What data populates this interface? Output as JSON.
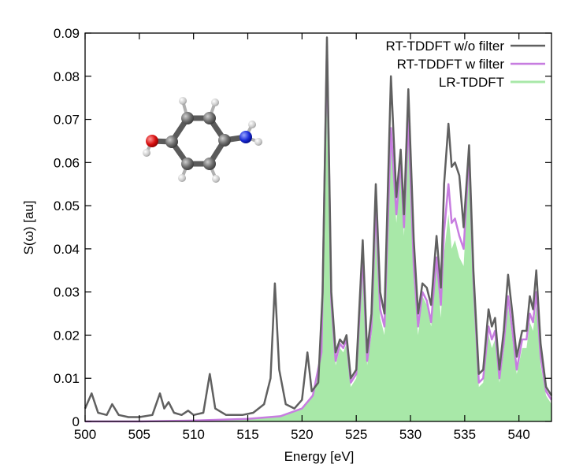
{
  "chart_data": {
    "type": "line",
    "title": "",
    "xlabel": "Energy [eV]",
    "ylabel": "S(ω) [au]",
    "xlim": [
      500,
      543
    ],
    "ylim": [
      0,
      0.09
    ],
    "xticks": [
      500,
      505,
      510,
      515,
      520,
      525,
      530,
      535,
      540
    ],
    "xtick_labels": [
      "500",
      "505",
      "510",
      "515",
      "520",
      "525",
      "530",
      "535",
      "540"
    ],
    "yticks": [
      0,
      0.01,
      0.02,
      0.03,
      0.04,
      0.05,
      0.06,
      0.07,
      0.08,
      0.09
    ],
    "ytick_labels": [
      "0",
      "0.01",
      "0.02",
      "0.03",
      "0.04",
      "0.05",
      "0.06",
      "0.07",
      "0.08",
      "0.09"
    ],
    "grid": false,
    "legend_position": "top-right",
    "inset": "molecule-image",
    "series": [
      {
        "name": "RT-TDDFT w/o filter",
        "color": "#606060",
        "style": "line",
        "points": [
          [
            500,
            0.003
          ],
          [
            500.6,
            0.0065
          ],
          [
            501.2,
            0.002
          ],
          [
            502,
            0.0015
          ],
          [
            502.5,
            0.004
          ],
          [
            503.1,
            0.0015
          ],
          [
            504,
            0.001
          ],
          [
            505,
            0.001
          ],
          [
            506.2,
            0.0015
          ],
          [
            506.9,
            0.0065
          ],
          [
            507.3,
            0.003
          ],
          [
            507.7,
            0.0045
          ],
          [
            508.2,
            0.002
          ],
          [
            508.9,
            0.0015
          ],
          [
            509.5,
            0.0025
          ],
          [
            510,
            0.0015
          ],
          [
            510.9,
            0.002
          ],
          [
            511.5,
            0.011
          ],
          [
            512,
            0.003
          ],
          [
            513,
            0.0015
          ],
          [
            514.5,
            0.0015
          ],
          [
            515.5,
            0.002
          ],
          [
            516.5,
            0.004
          ],
          [
            517.1,
            0.01
          ],
          [
            517.5,
            0.032
          ],
          [
            517.9,
            0.012
          ],
          [
            518.5,
            0.004
          ],
          [
            519.3,
            0.003
          ],
          [
            520,
            0.005
          ],
          [
            520.5,
            0.016
          ],
          [
            520.9,
            0.007
          ],
          [
            521.5,
            0.009
          ],
          [
            521.9,
            0.03
          ],
          [
            522.3,
            0.089
          ],
          [
            522.7,
            0.03
          ],
          [
            523.1,
            0.016
          ],
          [
            523.5,
            0.019
          ],
          [
            523.8,
            0.018
          ],
          [
            524.1,
            0.02
          ],
          [
            524.5,
            0.01
          ],
          [
            525,
            0.012
          ],
          [
            525.6,
            0.042
          ],
          [
            526,
            0.016
          ],
          [
            526.4,
            0.025
          ],
          [
            526.8,
            0.055
          ],
          [
            527.2,
            0.03
          ],
          [
            527.6,
            0.025
          ],
          [
            528.2,
            0.08
          ],
          [
            528.7,
            0.052
          ],
          [
            529.1,
            0.063
          ],
          [
            529.4,
            0.048
          ],
          [
            529.8,
            0.077
          ],
          [
            530.3,
            0.042
          ],
          [
            530.7,
            0.025
          ],
          [
            531.1,
            0.032
          ],
          [
            531.5,
            0.031
          ],
          [
            531.9,
            0.027
          ],
          [
            532.4,
            0.043
          ],
          [
            532.8,
            0.031
          ],
          [
            533.1,
            0.055
          ],
          [
            533.5,
            0.069
          ],
          [
            533.8,
            0.059
          ],
          [
            534.1,
            0.06
          ],
          [
            534.5,
            0.057
          ],
          [
            534.9,
            0.045
          ],
          [
            535.4,
            0.064
          ],
          [
            535.8,
            0.035
          ],
          [
            536.3,
            0.011
          ],
          [
            536.7,
            0.012
          ],
          [
            537.2,
            0.026
          ],
          [
            537.5,
            0.022
          ],
          [
            537.8,
            0.024
          ],
          [
            538.2,
            0.012
          ],
          [
            538.6,
            0.021
          ],
          [
            539,
            0.034
          ],
          [
            539.4,
            0.025
          ],
          [
            539.8,
            0.015
          ],
          [
            540.3,
            0.021
          ],
          [
            540.7,
            0.021
          ],
          [
            541,
            0.029
          ],
          [
            541.3,
            0.026
          ],
          [
            541.6,
            0.035
          ],
          [
            542,
            0.018
          ],
          [
            542.5,
            0.008
          ],
          [
            543,
            0.006
          ]
        ]
      },
      {
        "name": "RT-TDDFT w filter",
        "color": "#c77de0",
        "style": "line",
        "points": [
          [
            500,
            0
          ],
          [
            505,
            0
          ],
          [
            510,
            0.0002
          ],
          [
            515,
            0.0006
          ],
          [
            518,
            0.0012
          ],
          [
            520,
            0.003
          ],
          [
            521,
            0.006
          ],
          [
            521.8,
            0.016
          ],
          [
            522.3,
            0.087
          ],
          [
            522.7,
            0.028
          ],
          [
            523.1,
            0.014
          ],
          [
            523.5,
            0.018
          ],
          [
            523.8,
            0.017
          ],
          [
            524.1,
            0.019
          ],
          [
            524.5,
            0.009
          ],
          [
            525,
            0.011
          ],
          [
            525.6,
            0.038
          ],
          [
            526,
            0.014
          ],
          [
            526.4,
            0.022
          ],
          [
            526.8,
            0.05
          ],
          [
            527.2,
            0.026
          ],
          [
            527.6,
            0.022
          ],
          [
            528.2,
            0.068
          ],
          [
            528.7,
            0.048
          ],
          [
            529.1,
            0.06
          ],
          [
            529.4,
            0.045
          ],
          [
            529.8,
            0.07
          ],
          [
            530.3,
            0.036
          ],
          [
            530.7,
            0.022
          ],
          [
            531.1,
            0.03
          ],
          [
            531.5,
            0.028
          ],
          [
            531.9,
            0.023
          ],
          [
            532.4,
            0.038
          ],
          [
            532.8,
            0.027
          ],
          [
            533.1,
            0.044
          ],
          [
            533.5,
            0.055
          ],
          [
            533.8,
            0.046
          ],
          [
            534.1,
            0.047
          ],
          [
            534.5,
            0.043
          ],
          [
            534.9,
            0.04
          ],
          [
            535.4,
            0.062
          ],
          [
            535.8,
            0.033
          ],
          [
            536.3,
            0.009
          ],
          [
            536.7,
            0.01
          ],
          [
            537.2,
            0.022
          ],
          [
            537.5,
            0.019
          ],
          [
            537.8,
            0.021
          ],
          [
            538.2,
            0.01
          ],
          [
            538.6,
            0.018
          ],
          [
            539,
            0.029
          ],
          [
            539.4,
            0.021
          ],
          [
            539.8,
            0.012
          ],
          [
            540.3,
            0.019
          ],
          [
            540.7,
            0.019
          ],
          [
            541,
            0.025
          ],
          [
            541.3,
            0.023
          ],
          [
            541.6,
            0.03
          ],
          [
            542,
            0.015
          ],
          [
            542.5,
            0.007
          ],
          [
            543,
            0.005
          ]
        ]
      },
      {
        "name": "LR-TDDFT",
        "color": "#a8e8a8",
        "style": "area",
        "points": [
          [
            500,
            0
          ],
          [
            505,
            0
          ],
          [
            510,
            0.0002
          ],
          [
            515,
            0.0005
          ],
          [
            518,
            0.0012
          ],
          [
            520,
            0.003
          ],
          [
            521,
            0.006
          ],
          [
            521.8,
            0.016
          ],
          [
            522.3,
            0.086
          ],
          [
            522.7,
            0.027
          ],
          [
            523.1,
            0.013
          ],
          [
            523.5,
            0.017
          ],
          [
            523.8,
            0.016
          ],
          [
            524.1,
            0.018
          ],
          [
            524.5,
            0.008
          ],
          [
            525,
            0.01
          ],
          [
            525.6,
            0.037
          ],
          [
            526,
            0.013
          ],
          [
            526.4,
            0.02
          ],
          [
            526.8,
            0.048
          ],
          [
            527.2,
            0.024
          ],
          [
            527.6,
            0.02
          ],
          [
            528.2,
            0.065
          ],
          [
            528.7,
            0.046
          ],
          [
            529.1,
            0.059
          ],
          [
            529.4,
            0.043
          ],
          [
            529.8,
            0.066
          ],
          [
            530.3,
            0.033
          ],
          [
            530.7,
            0.02
          ],
          [
            531.1,
            0.029
          ],
          [
            531.5,
            0.027
          ],
          [
            531.9,
            0.022
          ],
          [
            532.4,
            0.037
          ],
          [
            532.8,
            0.024
          ],
          [
            533.1,
            0.039
          ],
          [
            533.5,
            0.048
          ],
          [
            533.8,
            0.04
          ],
          [
            534.1,
            0.042
          ],
          [
            534.5,
            0.038
          ],
          [
            534.9,
            0.036
          ],
          [
            535.4,
            0.06
          ],
          [
            535.8,
            0.031
          ],
          [
            536.3,
            0.008
          ],
          [
            536.7,
            0.009
          ],
          [
            537.2,
            0.02
          ],
          [
            537.5,
            0.017
          ],
          [
            537.8,
            0.019
          ],
          [
            538.2,
            0.009
          ],
          [
            538.6,
            0.016
          ],
          [
            539,
            0.027
          ],
          [
            539.4,
            0.019
          ],
          [
            539.8,
            0.011
          ],
          [
            540.3,
            0.017
          ],
          [
            540.7,
            0.017
          ],
          [
            541,
            0.023
          ],
          [
            541.3,
            0.021
          ],
          [
            541.6,
            0.027
          ],
          [
            542,
            0.013
          ],
          [
            542.5,
            0.006
          ],
          [
            543,
            0.004
          ]
        ]
      }
    ]
  }
}
